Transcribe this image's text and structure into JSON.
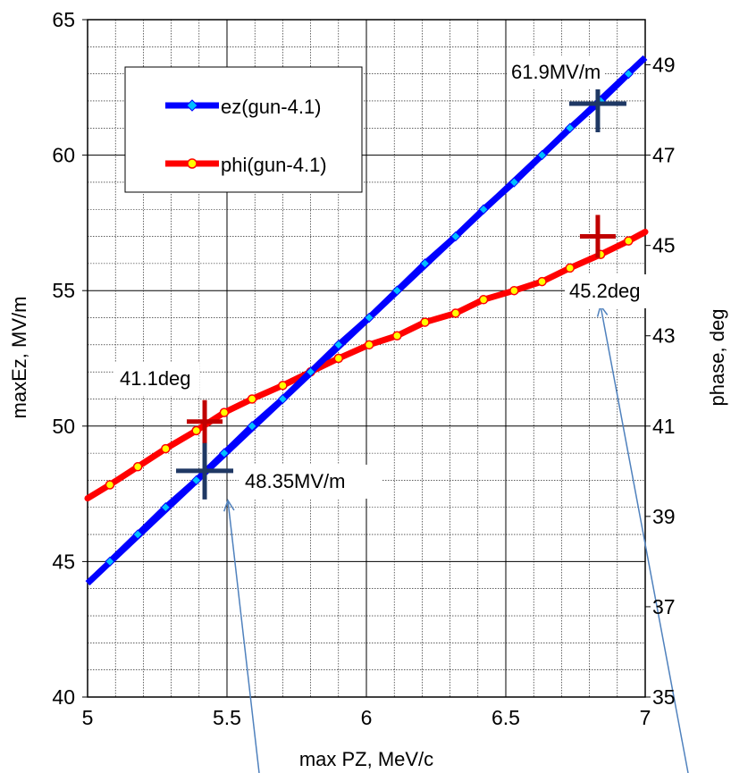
{
  "chart_data": {
    "type": "line",
    "title": "",
    "xlabel": "max PZ, MeV/c",
    "ylabel": "maxEz, MV/m",
    "y2label": "phase, deg",
    "xlim": [
      5,
      7
    ],
    "ylim": [
      40,
      65
    ],
    "y2lim": [
      35,
      50
    ],
    "x_ticks": [
      "5",
      "5.5",
      "6",
      "6.5",
      "7"
    ],
    "y_ticks": [
      "40",
      "45",
      "50",
      "55",
      "60",
      "65"
    ],
    "y2_ticks": [
      "35",
      "37",
      "39",
      "41",
      "43",
      "45",
      "47",
      "49"
    ],
    "grid": true,
    "legend_position": "top-left",
    "series": [
      {
        "name": "ez(gun-4.1)",
        "axis": "left",
        "color": "#0000ff",
        "marker_color": "#00bfff",
        "marker": "diamond",
        "line_x": [
          5.0,
          7.0
        ],
        "line_y": [
          44.2,
          63.6
        ],
        "x": [
          5.08,
          5.18,
          5.28,
          5.39,
          5.49,
          5.59,
          5.7,
          5.8,
          5.9,
          6.01,
          6.11,
          6.21,
          6.32,
          6.42,
          6.53,
          6.63,
          6.73,
          6.84,
          6.94
        ],
        "y": [
          45,
          46,
          47,
          48,
          49,
          50,
          51,
          52,
          53,
          54,
          55,
          56,
          57,
          58,
          59,
          60,
          61,
          62,
          63
        ]
      },
      {
        "name": "phi(gun-4.1)",
        "axis": "right",
        "color": "#ff0000",
        "marker_color": "#ffff00",
        "marker": "circle",
        "line_x": [
          5.0,
          7.0
        ],
        "line_y": [
          39.4,
          45.6
        ],
        "x": [
          5.0,
          5.08,
          5.18,
          5.28,
          5.39,
          5.49,
          5.59,
          5.7,
          5.8,
          5.9,
          6.01,
          6.11,
          6.21,
          6.32,
          6.42,
          6.53,
          6.63,
          6.73,
          6.84,
          6.94,
          7.0
        ],
        "y": [
          39.4,
          39.7,
          40.1,
          40.5,
          40.9,
          41.3,
          41.6,
          41.9,
          42.2,
          42.5,
          42.8,
          43.0,
          43.3,
          43.5,
          43.8,
          44.0,
          44.2,
          44.5,
          44.8,
          45.1,
          45.3
        ]
      }
    ],
    "markers": [
      {
        "name": "ez-low-marker",
        "axis": "left",
        "x": 5.42,
        "y": 48.35,
        "color": "#1f3864",
        "size": "large"
      },
      {
        "name": "ez-high-marker",
        "axis": "left",
        "x": 6.83,
        "y": 61.9,
        "color": "#1f3864",
        "size": "large"
      },
      {
        "name": "phi-low-marker",
        "axis": "right",
        "x": 5.42,
        "y": 41.1,
        "color": "#c00000",
        "size": "medium"
      },
      {
        "name": "phi-high-marker",
        "axis": "right",
        "x": 6.83,
        "y": 45.2,
        "color": "#c00000",
        "size": "medium"
      }
    ],
    "annotations": [
      {
        "name": "annot-61-9",
        "text": "61.9MV/m"
      },
      {
        "name": "annot-41-1",
        "text": "41.1deg"
      },
      {
        "name": "annot-48-35",
        "text": "48.35MV/m"
      },
      {
        "name": "annot-45-2",
        "text": "45.2deg"
      }
    ],
    "colors": {
      "arrow": "#4f81bd",
      "grid": "#000000"
    }
  }
}
